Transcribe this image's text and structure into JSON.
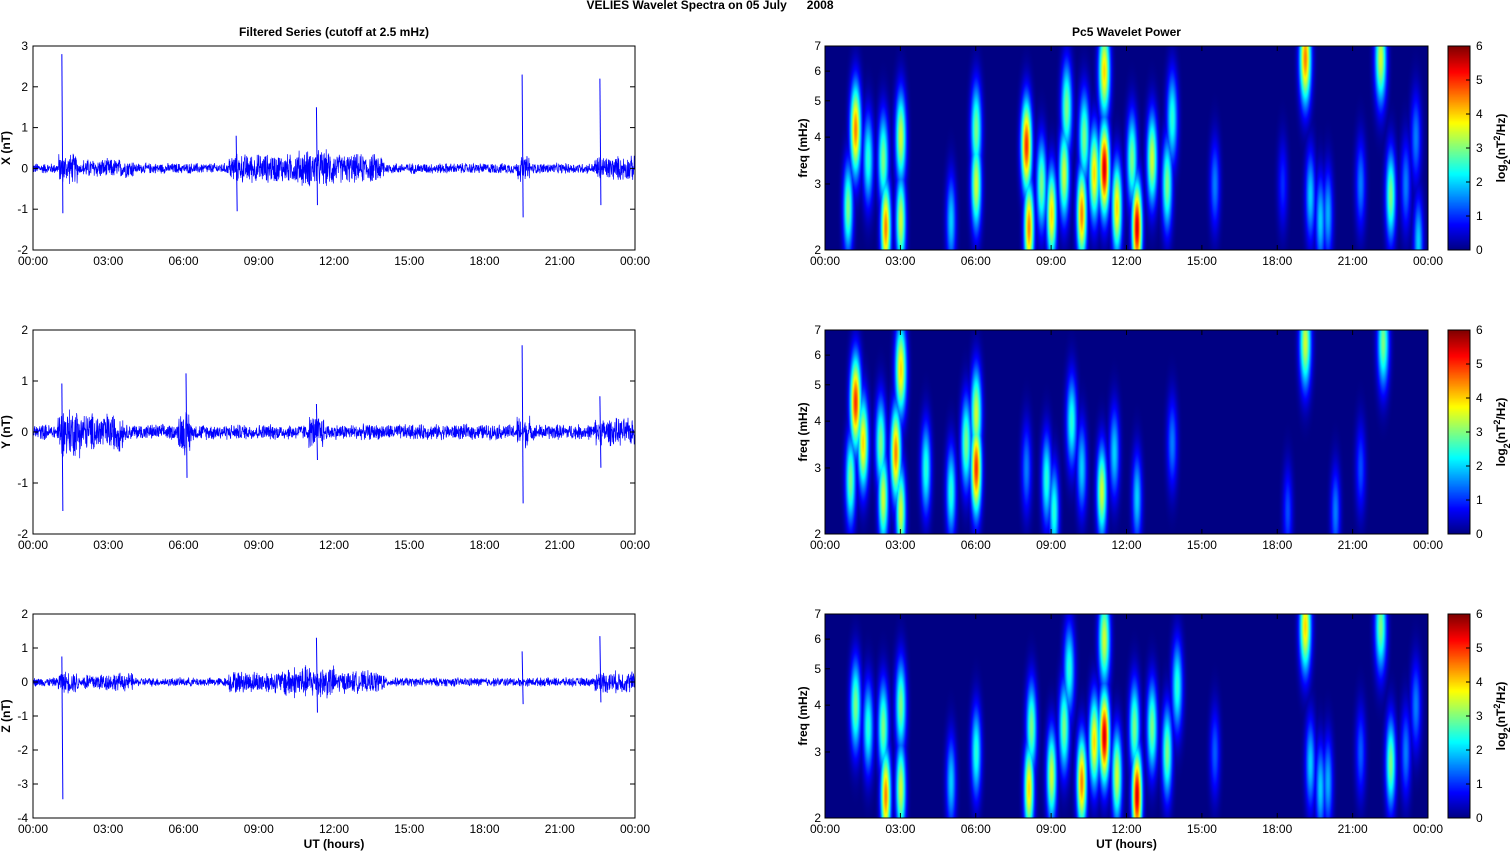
{
  "title": "VELIES Wavelet Spectra on 05 July      2008",
  "chart_data": [
    {
      "type": "line",
      "title": "Filtered Series (cutoff at 2.5 mHz)",
      "xlabel": "",
      "ylabel": "X (nT)",
      "xlim": [
        0,
        24
      ],
      "ylim": [
        -2,
        3
      ],
      "yticks": [
        "-2",
        "-1",
        "0",
        "1",
        "2",
        "3"
      ],
      "xticks": [
        "00:00",
        "03:00",
        "06:00",
        "09:00",
        "12:00",
        "15:00",
        "18:00",
        "21:00",
        "00:00"
      ],
      "color": "#0000ff",
      "base_amplitude": 0.12,
      "activity": [
        [
          1.0,
          1.8,
          0.35
        ],
        [
          2.0,
          4.0,
          0.22
        ],
        [
          7.8,
          14.0,
          0.33
        ],
        [
          10.5,
          12.0,
          0.42
        ],
        [
          19.3,
          19.8,
          0.3
        ],
        [
          22.4,
          24.0,
          0.28
        ]
      ],
      "spikes": [
        [
          1.15,
          2.8,
          -1.1
        ],
        [
          8.1,
          0.8,
          -1.05
        ],
        [
          11.3,
          1.5,
          -0.9
        ],
        [
          19.5,
          2.3,
          -1.2
        ],
        [
          22.6,
          2.2,
          -0.9
        ]
      ]
    },
    {
      "type": "line",
      "xlabel": "",
      "ylabel": "Y (nT)",
      "xlim": [
        0,
        24
      ],
      "ylim": [
        -2,
        2
      ],
      "yticks": [
        "-2",
        "-1",
        "0",
        "1",
        "2"
      ],
      "xticks": [
        "00:00",
        "03:00",
        "06:00",
        "09:00",
        "12:00",
        "15:00",
        "18:00",
        "21:00",
        "00:00"
      ],
      "color": "#0000ff",
      "base_amplitude": 0.14,
      "activity": [
        [
          1.0,
          2.0,
          0.45
        ],
        [
          2.0,
          3.6,
          0.35
        ],
        [
          5.8,
          6.3,
          0.4
        ],
        [
          11.0,
          11.6,
          0.3
        ],
        [
          19.3,
          19.8,
          0.3
        ],
        [
          22.4,
          24.0,
          0.25
        ]
      ],
      "spikes": [
        [
          1.15,
          0.95,
          -1.55
        ],
        [
          6.1,
          1.15,
          -0.9
        ],
        [
          11.3,
          0.55,
          -0.55
        ],
        [
          19.5,
          1.7,
          -1.4
        ],
        [
          22.6,
          0.7,
          -0.7
        ]
      ]
    },
    {
      "type": "line",
      "xlabel": "UT (hours)",
      "ylabel": "Z (nT)",
      "xlim": [
        0,
        24
      ],
      "ylim": [
        -4,
        2
      ],
      "yticks": [
        "-4",
        "-3",
        "-2",
        "-1",
        "0",
        "1",
        "2"
      ],
      "xticks": [
        "00:00",
        "03:00",
        "06:00",
        "09:00",
        "12:00",
        "15:00",
        "18:00",
        "21:00",
        "00:00"
      ],
      "color": "#0000ff",
      "base_amplitude": 0.12,
      "activity": [
        [
          1.0,
          1.8,
          0.3
        ],
        [
          2.0,
          4.0,
          0.25
        ],
        [
          7.8,
          14.0,
          0.3
        ],
        [
          10.0,
          12.0,
          0.45
        ],
        [
          22.4,
          24.0,
          0.3
        ]
      ],
      "spikes": [
        [
          1.15,
          0.75,
          -3.45
        ],
        [
          11.3,
          1.3,
          -0.9
        ],
        [
          19.5,
          0.9,
          -0.65
        ],
        [
          22.6,
          1.35,
          -0.6
        ]
      ]
    },
    {
      "type": "heatmap",
      "title": "Pc5 Wavelet Power",
      "xlabel": "",
      "ylabel": "freq (mHz)",
      "xlim": [
        0,
        24
      ],
      "ylim": [
        2,
        7
      ],
      "yscale": "log",
      "yticks": [
        "2",
        "3",
        "4",
        "5",
        "6",
        "7"
      ],
      "xticks": [
        "00:00",
        "03:00",
        "06:00",
        "09:00",
        "12:00",
        "15:00",
        "18:00",
        "21:00",
        "00:00"
      ],
      "colorbar": {
        "range": [
          0,
          6
        ],
        "ticks": [
          "0",
          "1",
          "2",
          "3",
          "4",
          "5",
          "6"
        ],
        "colormap": "jet"
      },
      "colorbar_label": {
        "base": "log",
        "sub": "2",
        "mid": "(nT",
        "sup": "2",
        "end": "/Hz)"
      },
      "blobs": [
        [
          1.2,
          4.2,
          4.5
        ],
        [
          0.9,
          2.6,
          3
        ],
        [
          1.7,
          3.5,
          2.5
        ],
        [
          2.4,
          2.3,
          4.5
        ],
        [
          2.3,
          3.5,
          3
        ],
        [
          3.0,
          4.0,
          3.5
        ],
        [
          3.0,
          2.4,
          3.5
        ],
        [
          5.0,
          2.4,
          2
        ],
        [
          6.0,
          3.0,
          3.5
        ],
        [
          6.0,
          4.2,
          3
        ],
        [
          8.0,
          3.8,
          5
        ],
        [
          8.1,
          2.3,
          4.5
        ],
        [
          8.6,
          3,
          3
        ],
        [
          9.0,
          2.5,
          4
        ],
        [
          9.5,
          3.2,
          3.5
        ],
        [
          9.6,
          4.8,
          3
        ],
        [
          10.2,
          2.5,
          4.5
        ],
        [
          10.3,
          4,
          3
        ],
        [
          10.7,
          3.2,
          4
        ],
        [
          11.1,
          3.3,
          5.5
        ],
        [
          11.1,
          6,
          4
        ],
        [
          11.6,
          2.6,
          4
        ],
        [
          12.4,
          2.3,
          5.5
        ],
        [
          12.2,
          3.5,
          3
        ],
        [
          13.0,
          3.5,
          3.5
        ],
        [
          13.6,
          3,
          3
        ],
        [
          13.8,
          4.5,
          2.5
        ],
        [
          15.5,
          3,
          1.5
        ],
        [
          18.2,
          3,
          1
        ],
        [
          19.1,
          6.5,
          4.5
        ],
        [
          19.3,
          2.8,
          2
        ],
        [
          19.7,
          2.4,
          2
        ],
        [
          20.0,
          2.5,
          1.8
        ],
        [
          21.3,
          3,
          1.5
        ],
        [
          22.1,
          6.5,
          3.5
        ],
        [
          22.5,
          2.8,
          3
        ],
        [
          23.1,
          3,
          1.5
        ],
        [
          23.5,
          4,
          1.5
        ],
        [
          23.6,
          2.1,
          2
        ]
      ]
    },
    {
      "type": "heatmap",
      "xlabel": "",
      "ylabel": "freq (mHz)",
      "xlim": [
        0,
        24
      ],
      "ylim": [
        2,
        7
      ],
      "yscale": "log",
      "yticks": [
        "2",
        "3",
        "4",
        "5",
        "6",
        "7"
      ],
      "xticks": [
        "00:00",
        "03:00",
        "06:00",
        "09:00",
        "12:00",
        "15:00",
        "18:00",
        "21:00",
        "00:00"
      ],
      "colorbar": {
        "range": [
          0,
          6
        ],
        "ticks": [
          "0",
          "1",
          "2",
          "3",
          "4",
          "5",
          "6"
        ],
        "colormap": "jet"
      },
      "colorbar_label": {
        "base": "log",
        "sub": "2",
        "mid": "(nT",
        "sup": "2",
        "end": "/Hz)"
      },
      "blobs": [
        [
          1.2,
          4.5,
          5
        ],
        [
          1.0,
          2.8,
          3
        ],
        [
          1.5,
          3.5,
          4
        ],
        [
          2.3,
          2.5,
          3.5
        ],
        [
          2.2,
          3.5,
          3
        ],
        [
          2.8,
          3.3,
          4.5
        ],
        [
          3.0,
          5.5,
          4
        ],
        [
          3.0,
          2.3,
          3.5
        ],
        [
          4.0,
          3,
          2.5
        ],
        [
          5.0,
          2.6,
          2.5
        ],
        [
          5.6,
          3.5,
          3
        ],
        [
          6.0,
          3.0,
          5
        ],
        [
          6.0,
          4.2,
          3.5
        ],
        [
          8.0,
          3,
          1.5
        ],
        [
          8.8,
          2.8,
          2.5
        ],
        [
          9.1,
          2.3,
          2.5
        ],
        [
          9.8,
          4,
          2.5
        ],
        [
          10.2,
          3,
          2
        ],
        [
          11.0,
          2.6,
          3.5
        ],
        [
          11.5,
          3.3,
          2
        ],
        [
          12.4,
          2.5,
          2
        ],
        [
          13.8,
          3.5,
          1.5
        ],
        [
          18.4,
          2.3,
          1.2
        ],
        [
          19.1,
          6.5,
          3.5
        ],
        [
          20.3,
          2.3,
          1.5
        ],
        [
          21.3,
          3,
          1.2
        ],
        [
          22.2,
          6.5,
          3
        ]
      ]
    },
    {
      "type": "heatmap",
      "xlabel": "UT (hours)",
      "ylabel": "freq (mHz)",
      "xlim": [
        0,
        24
      ],
      "ylim": [
        2,
        7
      ],
      "yscale": "log",
      "yticks": [
        "2",
        "3",
        "4",
        "5",
        "6",
        "7"
      ],
      "xticks": [
        "00:00",
        "03:00",
        "06:00",
        "09:00",
        "12:00",
        "15:00",
        "18:00",
        "21:00",
        "00:00"
      ],
      "colorbar": {
        "range": [
          0,
          6
        ],
        "ticks": [
          "0",
          "1",
          "2",
          "3",
          "4",
          "5",
          "6"
        ],
        "colormap": "jet"
      },
      "colorbar_label": {
        "base": "log",
        "sub": "2",
        "mid": "(nT",
        "sup": "2",
        "end": "/Hz)"
      },
      "blobs": [
        [
          1.2,
          4,
          3
        ],
        [
          1.7,
          3.5,
          2.5
        ],
        [
          2.4,
          2.3,
          4.5
        ],
        [
          2.3,
          3.5,
          3
        ],
        [
          3.0,
          4,
          3
        ],
        [
          3.0,
          2.4,
          3.5
        ],
        [
          5.0,
          2.5,
          2
        ],
        [
          6.0,
          3,
          2.5
        ],
        [
          8.1,
          2.4,
          4
        ],
        [
          8.2,
          3.5,
          3
        ],
        [
          9.0,
          2.6,
          3.5
        ],
        [
          9.5,
          3.5,
          3
        ],
        [
          9.7,
          5,
          2.5
        ],
        [
          10.2,
          2.5,
          4.5
        ],
        [
          10.7,
          3.2,
          4
        ],
        [
          11.1,
          3.3,
          5.5
        ],
        [
          11.1,
          6,
          3.5
        ],
        [
          11.6,
          2.6,
          3.5
        ],
        [
          12.4,
          2.3,
          5.5
        ],
        [
          12.3,
          3.5,
          3
        ],
        [
          13.0,
          3.5,
          3
        ],
        [
          13.6,
          3,
          3
        ],
        [
          14.0,
          4.5,
          2.5
        ],
        [
          15.5,
          3,
          1.3
        ],
        [
          19.1,
          6.5,
          4
        ],
        [
          19.3,
          2.8,
          2
        ],
        [
          19.7,
          2.4,
          2
        ],
        [
          20.0,
          2.5,
          1.8
        ],
        [
          21.3,
          3,
          1.3
        ],
        [
          22.1,
          6.5,
          3
        ],
        [
          22.5,
          2.8,
          3
        ],
        [
          23.1,
          3,
          1.5
        ],
        [
          23.5,
          4,
          1.5
        ]
      ]
    }
  ]
}
